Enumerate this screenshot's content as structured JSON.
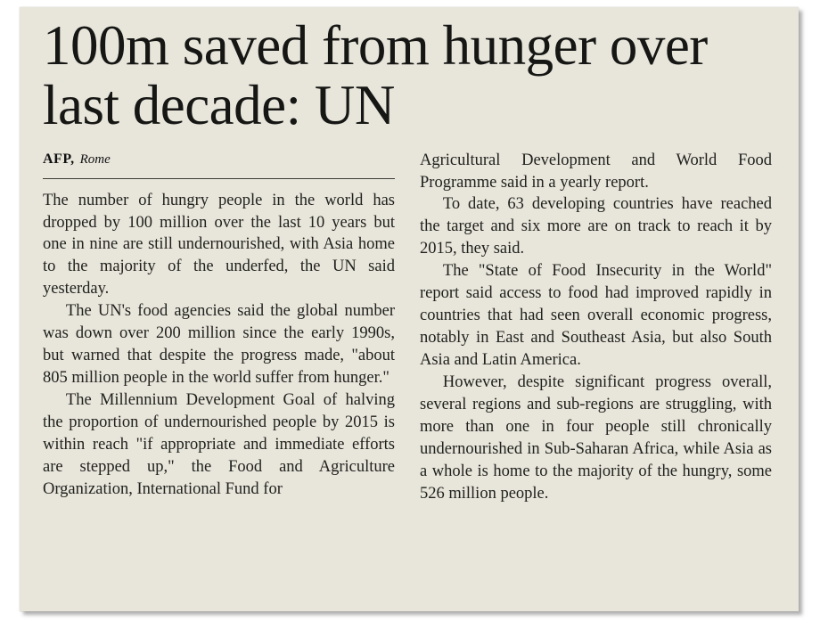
{
  "article": {
    "headline": "100m saved from hunger over last decade: UN",
    "byline": {
      "agency": "AFP,",
      "location": "Rome"
    },
    "columns": {
      "left": [
        "The number of hungry people in the world has dropped by 100 million over the last 10 years but one in nine are still undernourished, with Asia home to the majority of the underfed, the UN said yesterday.",
        "The UN's food agencies said the global number was down over 200 million since the early 1990s, but warned that despite the progress made, \"about 805 million people in the world suffer from hunger.\"",
        "The Millennium Development Goal of halving the proportion of undernourished people by 2015 is within reach \"if appropriate and immediate efforts are stepped up,\" the Food and Agriculture Organization, International Fund for"
      ],
      "right": [
        "Agricultural Development and World Food Programme said in a yearly report.",
        "To date, 63 developing countries have reached the target and six more are on track to reach it by 2015, they said.",
        "The \"State of Food Insecurity in the World\" report said access to food had improved rapidly in countries that had seen overall economic progress, notably in East and Southeast Asia, but also South Asia and Latin America.",
        "However, despite significant progress overall, several regions and sub-regions are struggling, with more than one in four people still chronically undernourished in Sub-Saharan Africa, while Asia as a whole is home to the majority of the hungry, some 526 million people."
      ]
    }
  },
  "colors": {
    "paper_background": "#e8e6db",
    "page_background": "#ffffff",
    "text": "#21211e",
    "headline_text": "#161614",
    "rule": "#3c3c38"
  }
}
